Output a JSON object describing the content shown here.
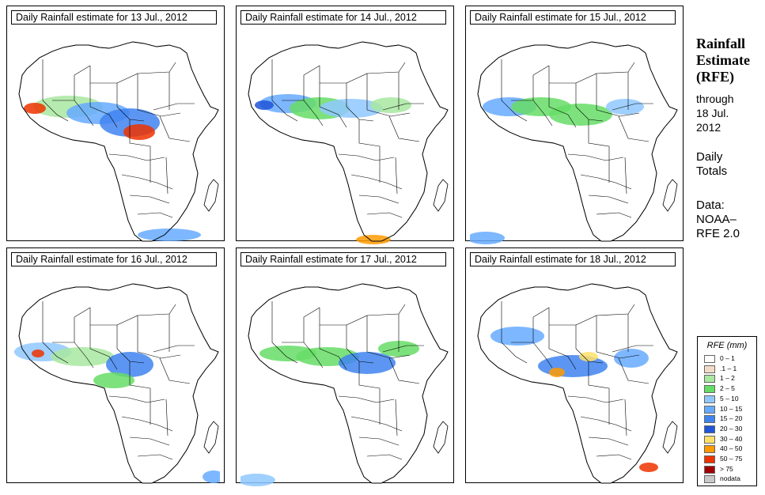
{
  "panels": [
    {
      "title": "Daily Rainfall estimate for  13 Jul., 2012"
    },
    {
      "title": "Daily Rainfall estimate for  14 Jul., 2012"
    },
    {
      "title": "Daily Rainfall estimate for  15 Jul., 2012"
    },
    {
      "title": "Daily Rainfall estimate for  16 Jul., 2012"
    },
    {
      "title": "Daily Rainfall estimate for  17 Jul., 2012"
    },
    {
      "title": "Daily Rainfall estimate for  18 Jul., 2012"
    }
  ],
  "sidebar": {
    "title_line1": "Rainfall",
    "title_line2": "Estimate",
    "title_line3": "(RFE)",
    "through": "through",
    "date_line1": "18 Jul.",
    "date_line2": "2012",
    "daily": "Daily",
    "totals": "Totals",
    "data_label": "Data:",
    "source_line1": "NOAA–",
    "source_line2": "RFE 2.0"
  },
  "legend": {
    "title": "RFE (mm)",
    "items": [
      {
        "label": "0 – 1",
        "color": "#ffffff"
      },
      {
        "label": ".1 – 1",
        "color": "#f2dcc8"
      },
      {
        "label": "1 – 2",
        "color": "#a8e8a0"
      },
      {
        "label": "2 – 5",
        "color": "#66dd66"
      },
      {
        "label": "5 – 10",
        "color": "#8fc8ff"
      },
      {
        "label": "10 – 15",
        "color": "#66aaff"
      },
      {
        "label": "15 – 20",
        "color": "#3f84f0"
      },
      {
        "label": "20 – 30",
        "color": "#1f55d8"
      },
      {
        "label": "30 – 40",
        "color": "#ffe06a"
      },
      {
        "label": "40 – 50",
        "color": "#ff9a00"
      },
      {
        "label": "50 – 75",
        "color": "#ee3300"
      },
      {
        "label": "> 75",
        "color": "#a00000"
      },
      {
        "label": "nodata",
        "color": "#c8c8c8"
      }
    ]
  }
}
